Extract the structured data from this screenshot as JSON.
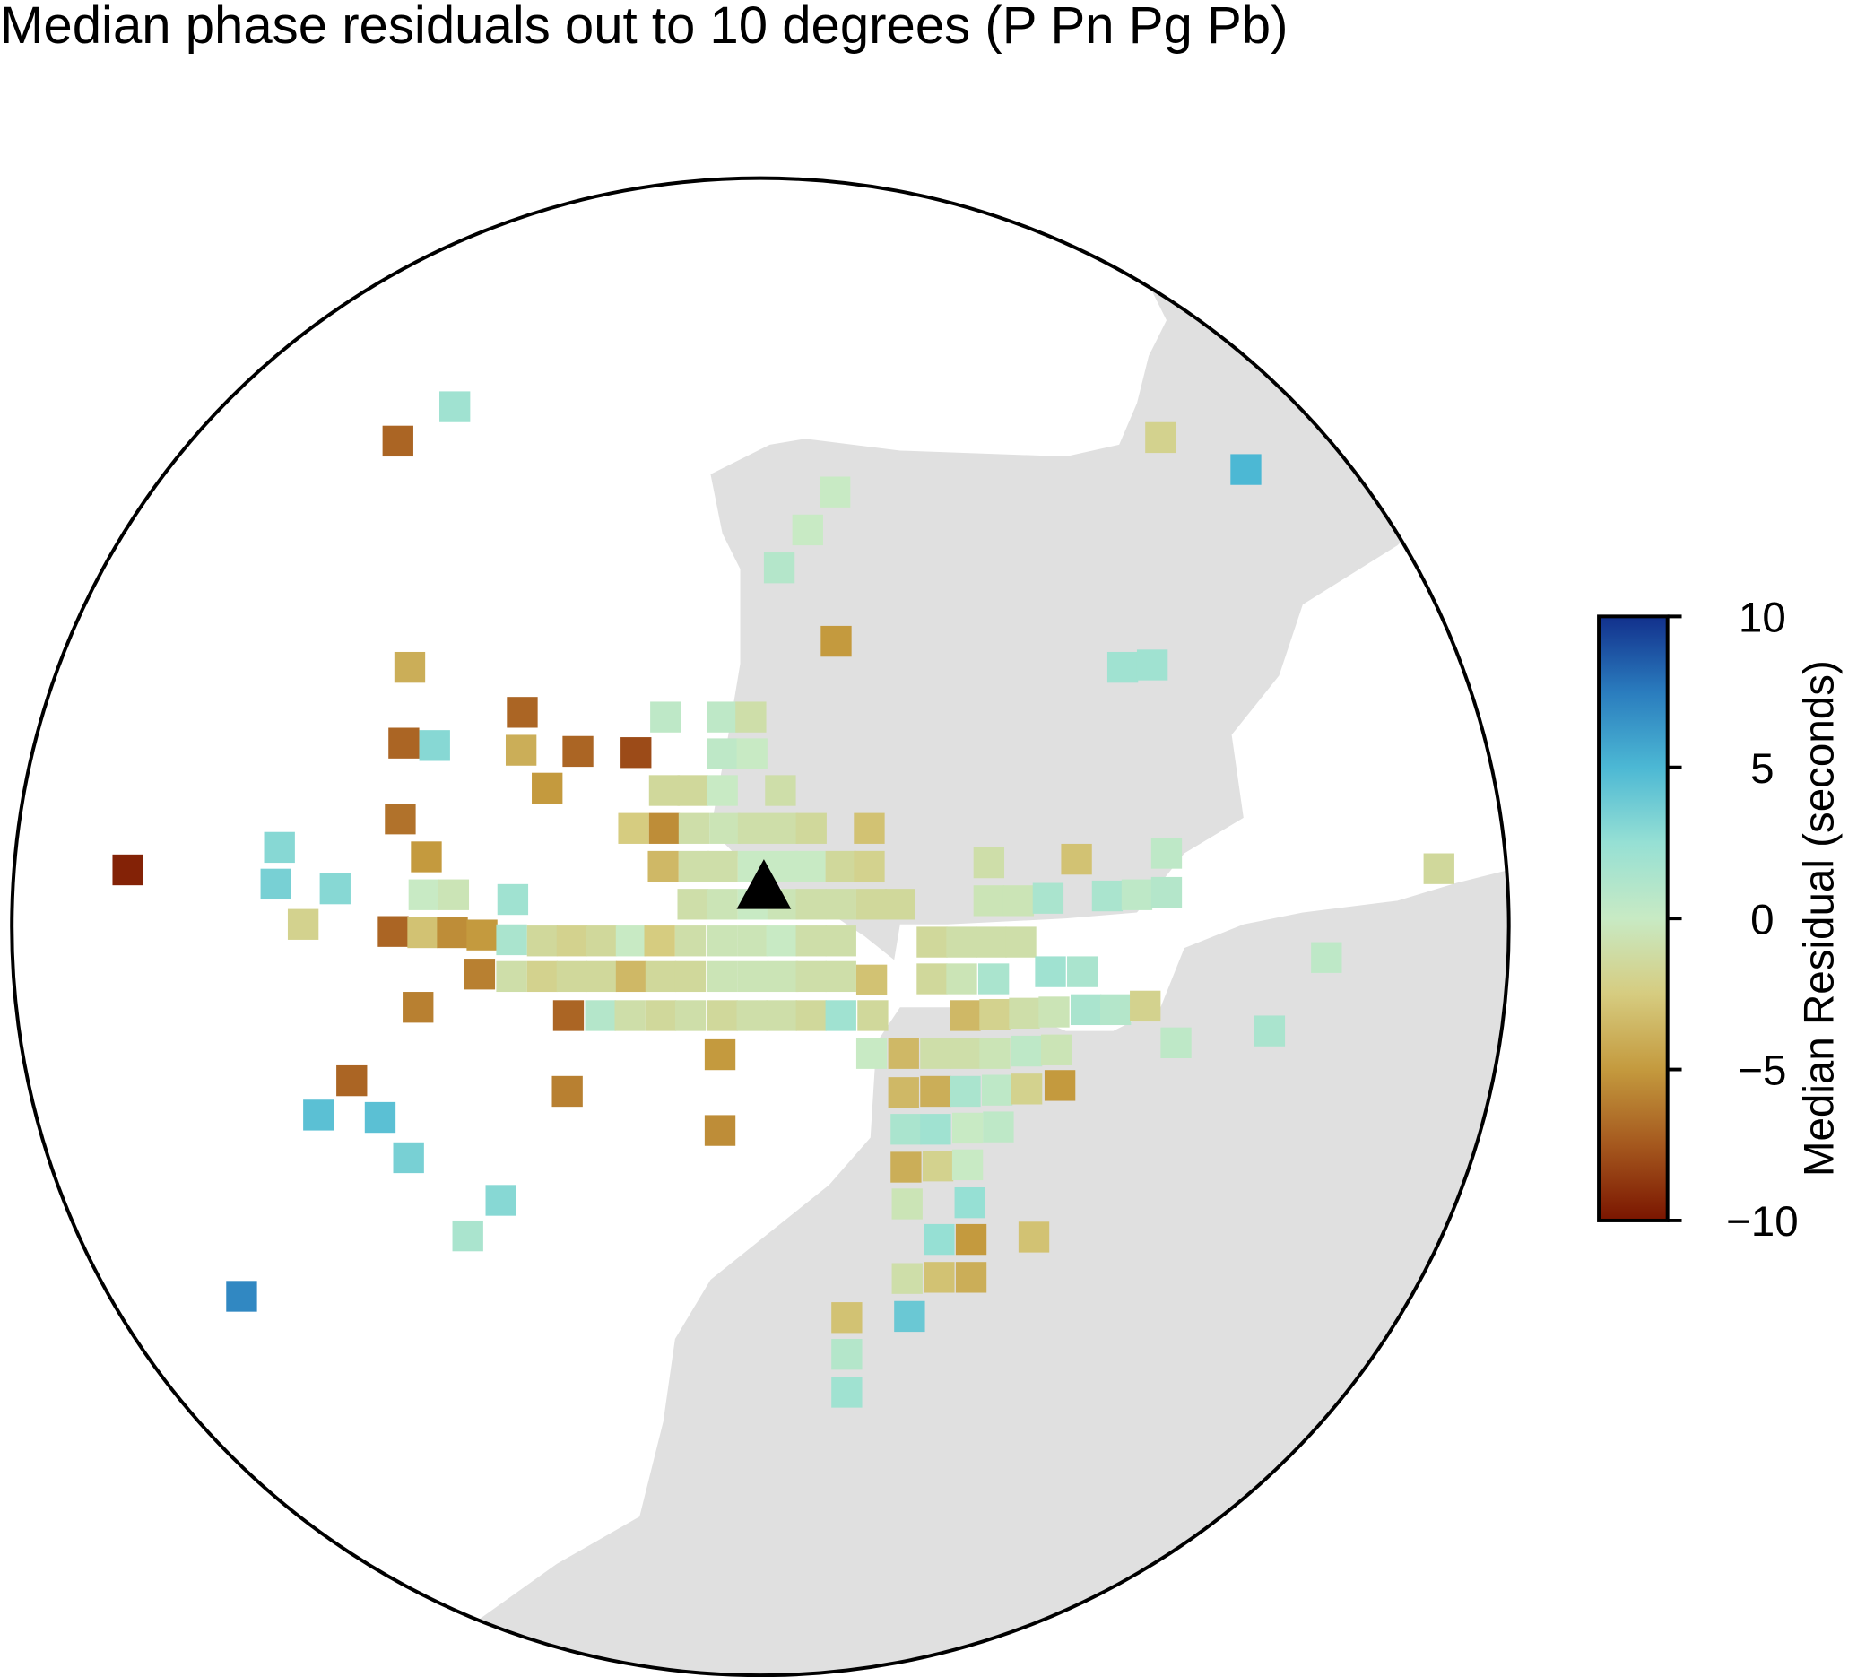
{
  "chart_data": {
    "type": "map",
    "title": "Median phase residuals out to 10 degrees (P Pn Pg Pb)",
    "colorbar": {
      "label": "Median Residual (seconds)",
      "lim": [
        -10,
        10
      ],
      "ticks": [
        {
          "value": -10,
          "label": "−10"
        },
        {
          "value": -5,
          "label": "−5"
        },
        0,
        5,
        10
      ],
      "colors": [
        "#7a1500",
        "#a5581e",
        "#c49a3e",
        "#d6cc80",
        "#c8eac4",
        "#96e0d4",
        "#4cb8d4",
        "#2a7cbe",
        "#12308c"
      ]
    },
    "values": [
      2,
      -7,
      -2,
      5,
      0,
      0,
      1,
      -5,
      -4,
      2,
      2,
      -7,
      0.5,
      0.5,
      -1,
      -7,
      3,
      -4,
      -7,
      -8,
      0.5,
      0,
      -5,
      -1.5,
      -1.5,
      0,
      -1,
      -6.5,
      -2.5,
      -5.5,
      -1,
      -0.5,
      -1,
      -1,
      -1.5,
      -3,
      3,
      -5,
      -3.5,
      -1,
      -1,
      0,
      0,
      0,
      -1.5,
      -2,
      -1,
      -3,
      0.5,
      -9.5,
      3.5,
      3,
      0,
      -0.5,
      2,
      -1,
      -0.5,
      0,
      -0.5,
      -1,
      -1,
      -1.5,
      -1.5,
      -0.5,
      -0.5,
      1.5,
      1.5,
      0.5,
      1,
      -1.5,
      -2,
      -7,
      -3,
      -5.5,
      -5,
      1.5,
      -1.5,
      -2,
      -1.5,
      0,
      -2.5,
      -1,
      -0.5,
      -0.5,
      0,
      -1,
      -1,
      -1.5,
      -1,
      -1,
      -1,
      -6,
      -1,
      -2,
      -1.5,
      -1.5,
      -3.5,
      -1.5,
      -1.5,
      -0.5,
      -0.5,
      -0.5,
      -1,
      -1,
      -3,
      -1.5,
      -0.5,
      1.5,
      2,
      1.5,
      0.5,
      -6,
      -7,
      1,
      -1,
      -1.5,
      -1,
      -1.5,
      -1,
      -1,
      -1.5,
      2,
      -1.5,
      -3.5,
      -2,
      -1,
      -0.5,
      1.5,
      1,
      -2,
      0.5,
      1.5,
      -5,
      0,
      -3.5,
      -1,
      -1,
      -0.5,
      0.5,
      -0.5,
      -7,
      -6,
      -3.5,
      -4,
      1.5,
      0.5,
      -2,
      -5,
      4.5,
      4.5,
      -5.5,
      1.5,
      2,
      0,
      0.5,
      3.5,
      -4,
      -2,
      0,
      3,
      -0.5,
      2.5,
      1.5,
      2.5,
      -5,
      -3,
      -1,
      -3,
      -4,
      7,
      -3,
      4,
      1,
      2
    ]
  }
}
